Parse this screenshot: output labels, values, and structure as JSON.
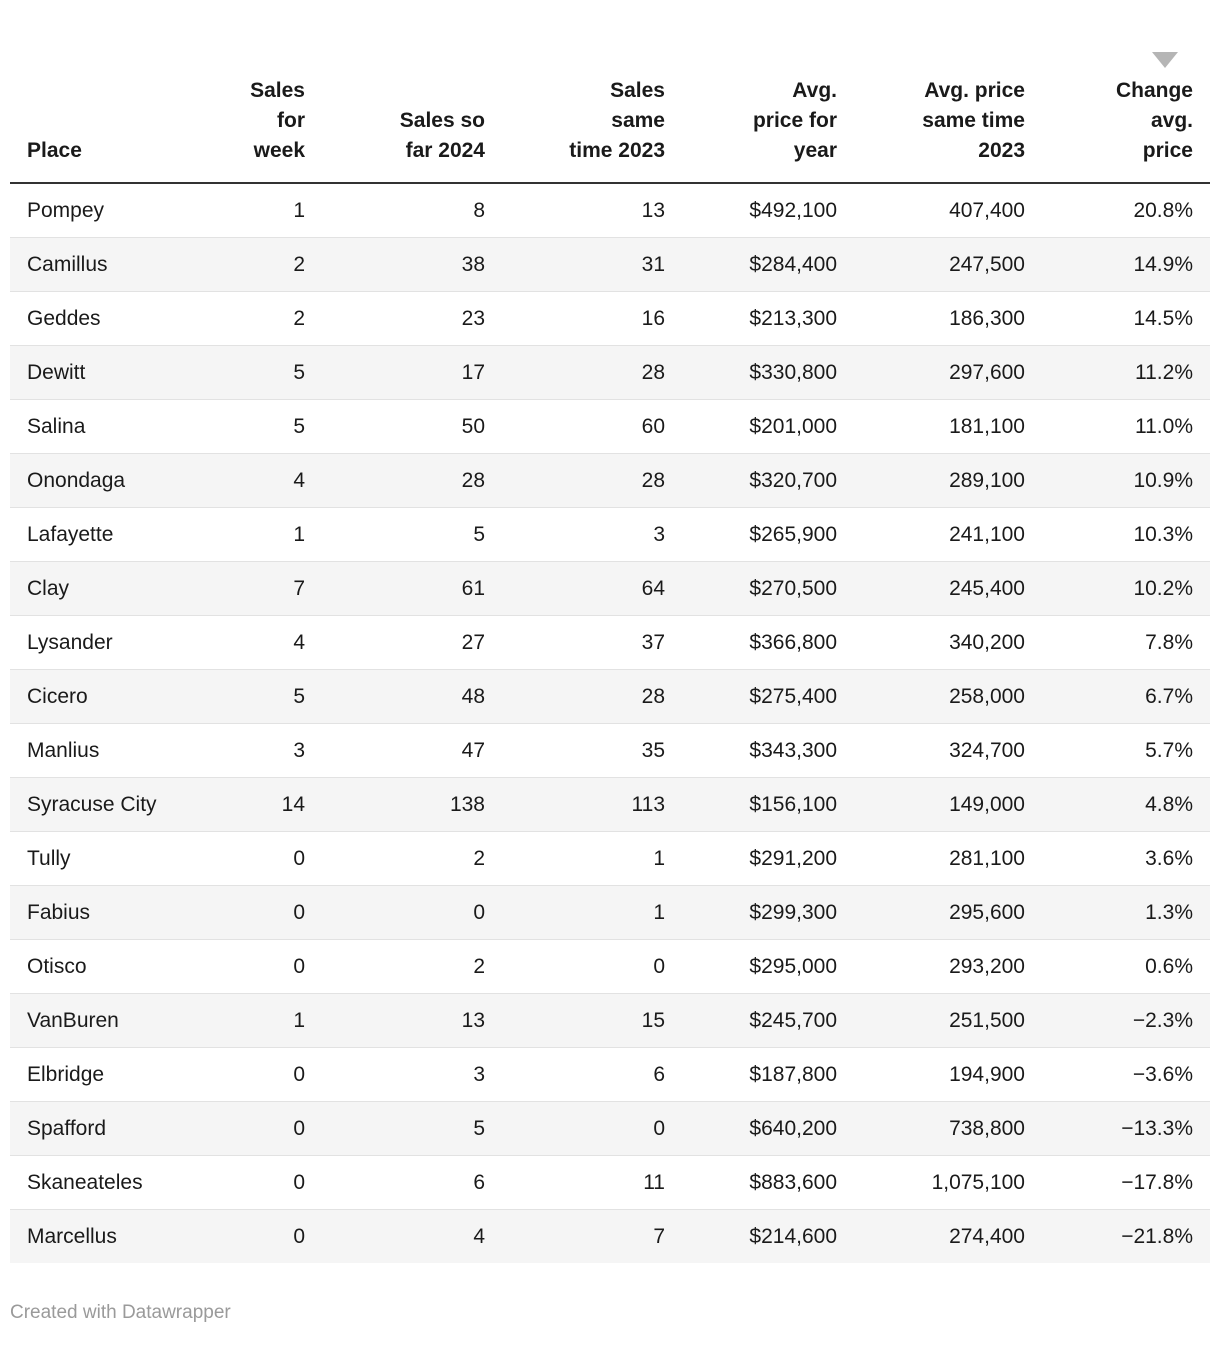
{
  "chart_data": {
    "type": "table",
    "title": "",
    "sort": {
      "column": "change-avg-price",
      "direction": "desc"
    },
    "columns": [
      {
        "key": "place",
        "label": "Place",
        "align": "left"
      },
      {
        "key": "sales-for-week",
        "label": "Sales\nfor\nweek",
        "align": "right"
      },
      {
        "key": "sales-so-far-2024",
        "label": "Sales so\nfar 2024",
        "align": "right"
      },
      {
        "key": "sales-same-time-2023",
        "label": "Sales\nsame\ntime 2023",
        "align": "right"
      },
      {
        "key": "avg-price-for-year",
        "label": "Avg.\nprice for\nyear",
        "align": "right"
      },
      {
        "key": "avg-price-same-time-2023",
        "label": "Avg. price\nsame time\n2023",
        "align": "right"
      },
      {
        "key": "change-avg-price",
        "label": "Change\navg.\nprice",
        "align": "right"
      }
    ],
    "rows": [
      [
        "Pompey",
        "1",
        "8",
        "13",
        "$492,100",
        "407,400",
        "20.8%"
      ],
      [
        "Camillus",
        "2",
        "38",
        "31",
        "$284,400",
        "247,500",
        "14.9%"
      ],
      [
        "Geddes",
        "2",
        "23",
        "16",
        "$213,300",
        "186,300",
        "14.5%"
      ],
      [
        "Dewitt",
        "5",
        "17",
        "28",
        "$330,800",
        "297,600",
        "11.2%"
      ],
      [
        "Salina",
        "5",
        "50",
        "60",
        "$201,000",
        "181,100",
        "11.0%"
      ],
      [
        "Onondaga",
        "4",
        "28",
        "28",
        "$320,700",
        "289,100",
        "10.9%"
      ],
      [
        "Lafayette",
        "1",
        "5",
        "3",
        "$265,900",
        "241,100",
        "10.3%"
      ],
      [
        "Clay",
        "7",
        "61",
        "64",
        "$270,500",
        "245,400",
        "10.2%"
      ],
      [
        "Lysander",
        "4",
        "27",
        "37",
        "$366,800",
        "340,200",
        "7.8%"
      ],
      [
        "Cicero",
        "5",
        "48",
        "28",
        "$275,400",
        "258,000",
        "6.7%"
      ],
      [
        "Manlius",
        "3",
        "47",
        "35",
        "$343,300",
        "324,700",
        "5.7%"
      ],
      [
        "Syracuse City",
        "14",
        "138",
        "113",
        "$156,100",
        "149,000",
        "4.8%"
      ],
      [
        "Tully",
        "0",
        "2",
        "1",
        "$291,200",
        "281,100",
        "3.6%"
      ],
      [
        "Fabius",
        "0",
        "0",
        "1",
        "$299,300",
        "295,600",
        "1.3%"
      ],
      [
        "Otisco",
        "0",
        "2",
        "0",
        "$295,000",
        "293,200",
        "0.6%"
      ],
      [
        "VanBuren",
        "1",
        "13",
        "15",
        "$245,700",
        "251,500",
        "−2.3%"
      ],
      [
        "Elbridge",
        "0",
        "3",
        "6",
        "$187,800",
        "194,900",
        "−3.6%"
      ],
      [
        "Spafford",
        "0",
        "5",
        "0",
        "$640,200",
        "738,800",
        "−13.3%"
      ],
      [
        "Skaneateles",
        "0",
        "6",
        "11",
        "$883,600",
        "1,075,100",
        "−17.8%"
      ],
      [
        "Marcellus",
        "0",
        "4",
        "7",
        "$214,600",
        "274,400",
        "−21.8%"
      ]
    ]
  },
  "footer": {
    "credit": "Created with Datawrapper"
  },
  "icons": {
    "sort_desc_icon": "▼"
  },
  "colors": {
    "text": "#1a1a1a",
    "stripe": "#f5f5f5",
    "separator": "#e2e2e2",
    "header_rule": "#333333",
    "sort_arrow": "#b5b5b5",
    "footer_text": "#9a9a9a"
  }
}
